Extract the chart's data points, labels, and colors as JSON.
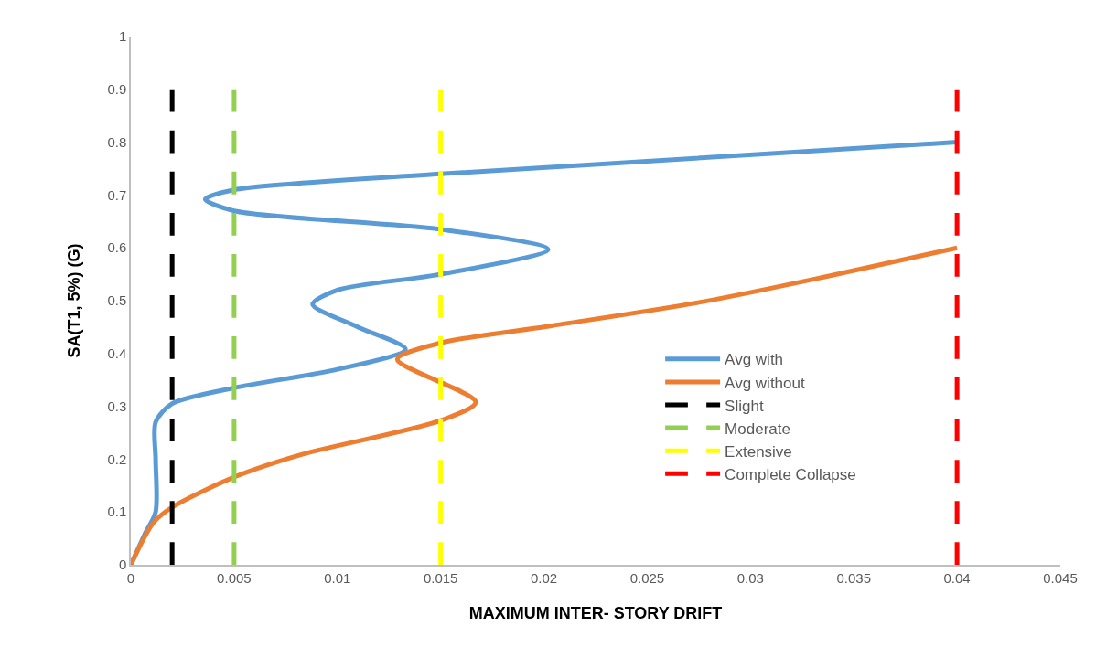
{
  "chart_data": {
    "type": "line",
    "xlabel": "MAXIMUM INTER- STORY DRIFT",
    "ylabel": "SA(T1, 5%) (G)",
    "xlim": [
      0,
      0.045
    ],
    "xticks": [
      0,
      0.005,
      0.01,
      0.015,
      0.02,
      0.025,
      0.03,
      0.035,
      0.04,
      0.045
    ],
    "ylim": [
      0,
      1
    ],
    "yticks": [
      0,
      0.1,
      0.2,
      0.3,
      0.4,
      0.5,
      0.6,
      0.7,
      0.8,
      0.9,
      1
    ],
    "legend": "right",
    "line_style": "solid",
    "series": [
      {
        "name": "Avg with",
        "color": "#5b9bd5",
        "x": [
          0,
          0.0007,
          0.0012,
          0.0012,
          0.0012,
          0.002,
          0.005,
          0.01,
          0.0133,
          0.011,
          0.0088,
          0.01,
          0.015,
          0.0202,
          0.015,
          0.005,
          0.0036,
          0.005,
          0.015,
          0.04
        ],
        "values": [
          0,
          0.06,
          0.1,
          0.2,
          0.27,
          0.305,
          0.335,
          0.37,
          0.408,
          0.45,
          0.493,
          0.52,
          0.55,
          0.597,
          0.635,
          0.67,
          0.692,
          0.71,
          0.74,
          0.8
        ]
      },
      {
        "name": "Avg without",
        "color": "#ed7d31",
        "x": [
          0,
          0.0011,
          0.002,
          0.005,
          0.0083,
          0.015,
          0.0167,
          0.0129,
          0.015,
          0.0203,
          0.0277,
          0.0336,
          0.04
        ],
        "values": [
          0,
          0.08,
          0.109,
          0.166,
          0.209,
          0.273,
          0.308,
          0.389,
          0.42,
          0.452,
          0.498,
          0.545,
          0.6
        ]
      },
      {
        "name": "Slight",
        "color": "#000000",
        "line_style": "dashed",
        "x": [
          0.002,
          0.002
        ],
        "values": [
          0,
          0.9
        ]
      },
      {
        "name": "Moderate",
        "color": "#92d050",
        "line_style": "dashed",
        "x": [
          0.005,
          0.005
        ],
        "values": [
          0,
          0.9
        ]
      },
      {
        "name": "Extensive",
        "color": "#ffff00",
        "line_style": "dashed",
        "x": [
          0.015,
          0.015
        ],
        "values": [
          0,
          0.9
        ]
      },
      {
        "name": "Complete Collapse",
        "color": "#ff0000",
        "line_style": "dashed",
        "x": [
          0.04,
          0.04
        ],
        "values": [
          0,
          0.9
        ]
      }
    ]
  }
}
